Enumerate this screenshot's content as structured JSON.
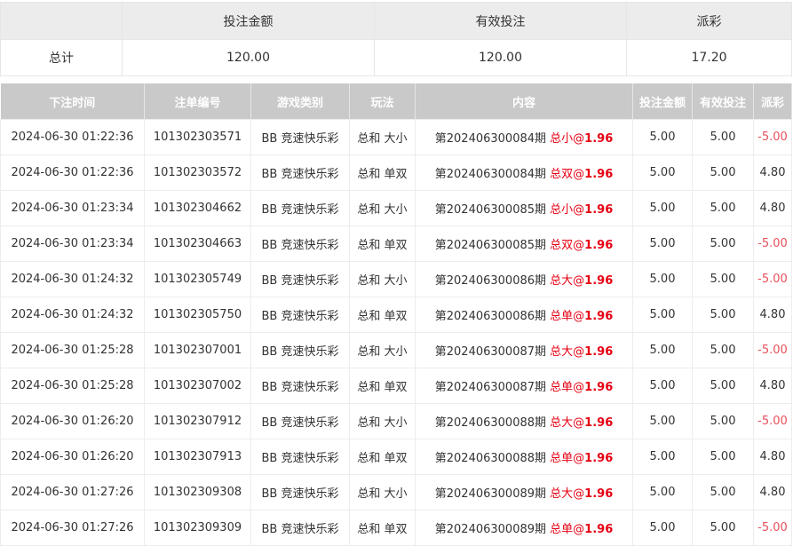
{
  "summary": {
    "headers": [
      "",
      "投注金额",
      "有效投注",
      "派彩"
    ],
    "row": [
      "总计",
      "120.00",
      "120.00",
      "17.20"
    ]
  },
  "table": {
    "headers": [
      "下注时间",
      "注单编号",
      "游戏类别",
      "玩法",
      "内容",
      "投注金额",
      "有效投注",
      "派彩"
    ],
    "rows": [
      {
        "time": "2024-06-30 01:22:36",
        "id": "101302303571",
        "game": "BB 竞速快乐彩",
        "play": "总和 大小",
        "issue": "第202406300084期",
        "pick": "总小@",
        "odds": "1.96",
        "bet": "5.00",
        "valid": "5.00",
        "payout": "-5.00"
      },
      {
        "time": "2024-06-30 01:22:36",
        "id": "101302303572",
        "game": "BB 竞速快乐彩",
        "play": "总和 单双",
        "issue": "第202406300084期",
        "pick": "总双@",
        "odds": "1.96",
        "bet": "5.00",
        "valid": "5.00",
        "payout": "4.80"
      },
      {
        "time": "2024-06-30 01:23:34",
        "id": "101302304662",
        "game": "BB 竞速快乐彩",
        "play": "总和 大小",
        "issue": "第202406300085期",
        "pick": "总小@",
        "odds": "1.96",
        "bet": "5.00",
        "valid": "5.00",
        "payout": "4.80"
      },
      {
        "time": "2024-06-30 01:23:34",
        "id": "101302304663",
        "game": "BB 竞速快乐彩",
        "play": "总和 单双",
        "issue": "第202406300085期",
        "pick": "总双@",
        "odds": "1.96",
        "bet": "5.00",
        "valid": "5.00",
        "payout": "-5.00"
      },
      {
        "time": "2024-06-30 01:24:32",
        "id": "101302305749",
        "game": "BB 竞速快乐彩",
        "play": "总和 大小",
        "issue": "第202406300086期",
        "pick": "总大@",
        "odds": "1.96",
        "bet": "5.00",
        "valid": "5.00",
        "payout": "-5.00"
      },
      {
        "time": "2024-06-30 01:24:32",
        "id": "101302305750",
        "game": "BB 竞速快乐彩",
        "play": "总和 单双",
        "issue": "第202406300086期",
        "pick": "总单@",
        "odds": "1.96",
        "bet": "5.00",
        "valid": "5.00",
        "payout": "4.80"
      },
      {
        "time": "2024-06-30 01:25:28",
        "id": "101302307001",
        "game": "BB 竞速快乐彩",
        "play": "总和 大小",
        "issue": "第202406300087期",
        "pick": "总大@",
        "odds": "1.96",
        "bet": "5.00",
        "valid": "5.00",
        "payout": "-5.00"
      },
      {
        "time": "2024-06-30 01:25:28",
        "id": "101302307002",
        "game": "BB 竞速快乐彩",
        "play": "总和 单双",
        "issue": "第202406300087期",
        "pick": "总单@",
        "odds": "1.96",
        "bet": "5.00",
        "valid": "5.00",
        "payout": "4.80"
      },
      {
        "time": "2024-06-30 01:26:20",
        "id": "101302307912",
        "game": "BB 竞速快乐彩",
        "play": "总和 大小",
        "issue": "第202406300088期",
        "pick": "总大@",
        "odds": "1.96",
        "bet": "5.00",
        "valid": "5.00",
        "payout": "-5.00"
      },
      {
        "time": "2024-06-30 01:26:20",
        "id": "101302307913",
        "game": "BB 竞速快乐彩",
        "play": "总和 单双",
        "issue": "第202406300088期",
        "pick": "总单@",
        "odds": "1.96",
        "bet": "5.00",
        "valid": "5.00",
        "payout": "4.80"
      },
      {
        "time": "2024-06-30 01:27:26",
        "id": "101302309308",
        "game": "BB 竞速快乐彩",
        "play": "总和 大小",
        "issue": "第202406300089期",
        "pick": "总大@",
        "odds": "1.96",
        "bet": "5.00",
        "valid": "5.00",
        "payout": "4.80"
      },
      {
        "time": "2024-06-30 01:27:26",
        "id": "101302309309",
        "game": "BB 竞速快乐彩",
        "play": "总和 单双",
        "issue": "第202406300089期",
        "pick": "总单@",
        "odds": "1.96",
        "bet": "5.00",
        "valid": "5.00",
        "payout": "-5.00"
      }
    ]
  },
  "colors": {
    "highlight": "#e60012",
    "negative": "#e8505b",
    "header_bg": "#c9c9c9"
  }
}
